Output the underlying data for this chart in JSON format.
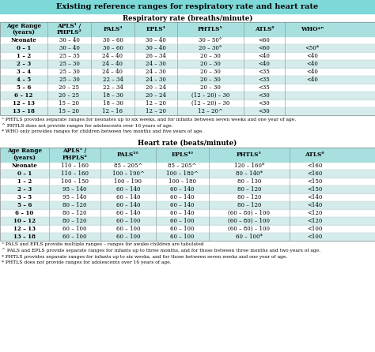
{
  "title": "Existing reference ranges for respiratory rate and heart rate",
  "title_bg": "#7dd8d8",
  "table_header_bg": "#a8e0e0",
  "table_row_bg_alt": "#d4ecec",
  "rr_subtitle": "Respiratory rate (breaths/minute)",
  "rr_headers": [
    "Age Range\n(years)",
    "APLS¹ /\nPHPLS²",
    "PALS³",
    "EPLS⁴",
    "PHTLS⁵",
    "ATLS⁶",
    "WHO*ⁿ"
  ],
  "rr_rows": [
    [
      "Neonate",
      "30 – 40",
      "30 – 60",
      "30 – 40",
      "30 – 50°",
      "<60",
      ""
    ],
    [
      "0 – 1",
      "30 – 40",
      "30 – 60",
      "30 – 40",
      "20 – 30°",
      "<60",
      "<50*"
    ],
    [
      "1 – 2",
      "25 – 35",
      "24 – 40",
      "26 – 34",
      "20 – 30",
      "<40",
      "<40"
    ],
    [
      "2 – 3",
      "25 – 30",
      "24 – 40",
      "24 – 30",
      "20 – 30",
      "<40",
      "<40"
    ],
    [
      "3 – 4",
      "25 – 30",
      "24 – 40",
      "24 – 30",
      "20 – 30",
      "<35",
      "<40"
    ],
    [
      "4 – 5",
      "25 – 30",
      "22 – 34",
      "24 – 30",
      "20 – 30",
      "<35",
      "<40"
    ],
    [
      "5 – 6",
      "20 – 25",
      "22 – 34",
      "20 – 24",
      "20 – 30",
      "<35",
      ""
    ],
    [
      "6 – 12",
      "20 – 25",
      "18 – 30",
      "20 – 24",
      "(12 – 20) – 30",
      "<30",
      ""
    ],
    [
      "12 – 13",
      "15 – 20",
      "18 – 30",
      "12 – 20",
      "(12 – 20) – 30",
      "<30",
      ""
    ],
    [
      "13 – 18",
      "15 – 20",
      "12 – 16",
      "12 – 20",
      "12 – 20^",
      "<30",
      ""
    ]
  ],
  "rr_footnotes": [
    "° PHTLS provides separate ranges for neonates up to six weeks, and for infants between seven weeks and one year of age.",
    "^ PHTLS does not provide ranges for adolescents over 16 years of age.",
    "* WHO only provides ranges for children between two months and five years of age."
  ],
  "hr_subtitle": "Heart rate (beats/minute)",
  "hr_headers": [
    "Age Range\n(years)",
    "APLS¹ /\nPHPLS²",
    "PALS³°",
    "EPLS⁴°",
    "PHTLS⁵",
    "ATLS⁶"
  ],
  "hr_rows": [
    [
      "Neonate",
      "110 – 160",
      "85 – 205^",
      "85 – 205^",
      "120 – 160*",
      "<160"
    ],
    [
      "0 – 1",
      "110 – 160",
      "100 – 190^",
      "100 – 180^",
      "80 – 140*",
      "<160"
    ],
    [
      "1 – 2",
      "100 – 150",
      "100 – 190",
      "100 – 180",
      "80 – 130",
      "<150"
    ],
    [
      "2 – 3",
      "95 – 140",
      "60 – 140",
      "60 – 140",
      "80 – 120",
      "<150"
    ],
    [
      "3 – 5",
      "95 – 140",
      "60 – 140",
      "60 – 140",
      "80 – 120",
      "<140"
    ],
    [
      "5 – 6",
      "80 – 120",
      "60 – 140",
      "60 – 140",
      "80 – 120",
      "<140"
    ],
    [
      "6 – 10",
      "80 – 120",
      "60 – 140",
      "60 – 140",
      "(60 – 80) – 100",
      "<120"
    ],
    [
      "10 – 12",
      "80 – 120",
      "60 – 100",
      "60 – 100",
      "(60 – 80) – 100",
      "<120"
    ],
    [
      "12 – 13",
      "60 – 100",
      "60 – 100",
      "60 – 100",
      "(60 – 80) – 100",
      "<100"
    ],
    [
      "13 – 18",
      "60 – 100",
      "60 – 100",
      "60 – 100",
      "60 – 100*",
      "<100"
    ]
  ],
  "hr_footnotes": [
    "° PALS and EPLS provide multiple ranges – ranges for awake children are tabulated",
    "^ PALS and EPLS provide separate ranges for infants up to three months, and for those between three months and two years of age.",
    "* PHTLS provides separate ranges for infants up to six weeks, and for those between seven weeks and one year of age.",
    "* PHTLS does not provide ranges for adolescents over 16 years of age."
  ],
  "fig_width": 4.74,
  "fig_height": 4.46,
  "dpi": 100
}
